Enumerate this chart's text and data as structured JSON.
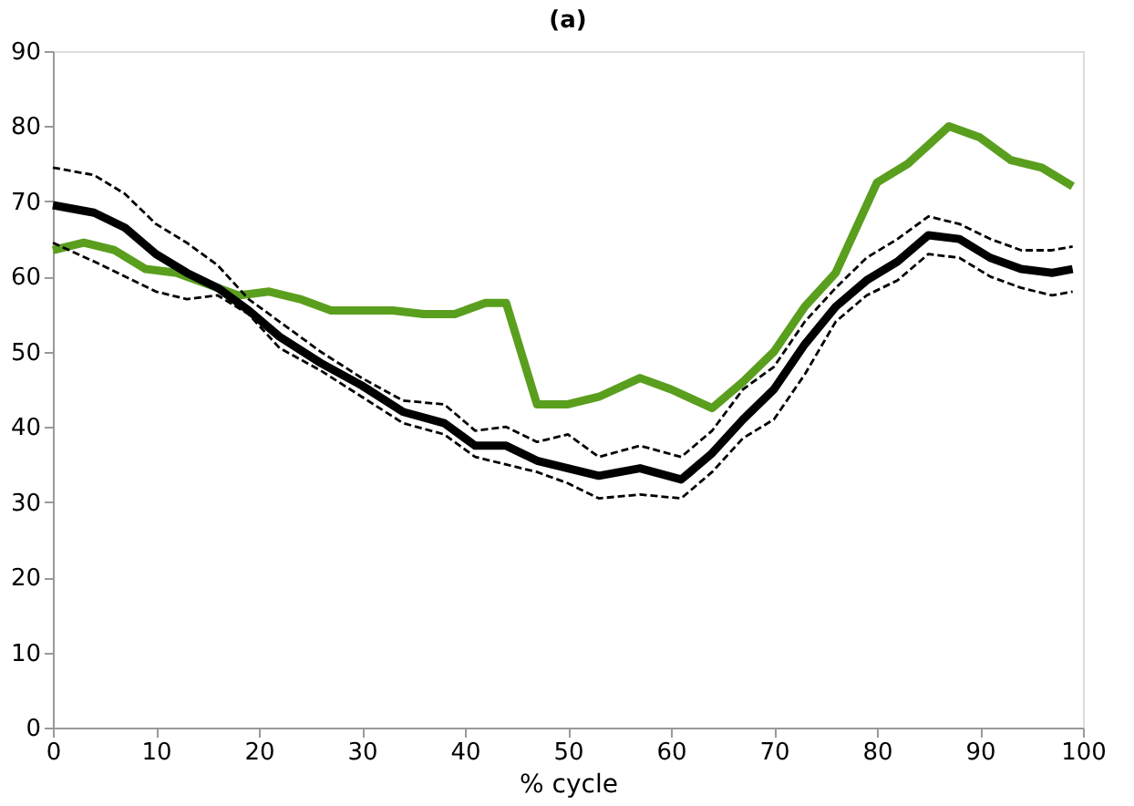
{
  "chart_data": {
    "type": "line",
    "title": "(a)",
    "xlabel": "% cycle",
    "xlim": [
      0,
      100
    ],
    "xticks": [
      0,
      10,
      20,
      30,
      40,
      50,
      60,
      70,
      80,
      90,
      100
    ],
    "ylim": [
      0,
      90
    ],
    "yticks": [
      0,
      10,
      20,
      30,
      40,
      50,
      60,
      70,
      80,
      90
    ],
    "grid": false,
    "series": [
      {
        "color": "#5a9e1e",
        "line_style": "solid",
        "x": [
          0,
          3,
          6,
          9,
          12,
          15,
          18,
          21,
          24,
          27,
          30,
          33,
          36,
          39,
          42,
          44,
          47,
          50,
          53,
          57,
          60,
          64,
          67,
          70,
          73,
          76,
          80,
          83,
          87,
          90,
          93,
          96,
          99
        ],
        "values": [
          63.5,
          64.5,
          63.5,
          61,
          60.5,
          59,
          57.5,
          58,
          57,
          55.5,
          55.5,
          55.5,
          55,
          55,
          56.5,
          56.5,
          43,
          43,
          44,
          46.5,
          45,
          42.5,
          46,
          50,
          56,
          60.5,
          72.5,
          75,
          80,
          78.5,
          75.5,
          74.5,
          72
        ]
      },
      {
        "color": "#000000",
        "line_style": "dashed",
        "x": [
          0,
          4,
          7,
          10,
          13,
          16,
          19,
          22,
          26,
          30,
          34,
          38,
          41,
          44,
          47,
          50,
          53,
          57,
          61,
          64,
          67,
          70,
          73,
          76,
          79,
          82,
          85,
          88,
          91,
          94,
          97,
          99
        ],
        "values": [
          74.5,
          73.5,
          71,
          67,
          64.5,
          61.5,
          57,
          54,
          50,
          46.5,
          43.5,
          43,
          39.5,
          40,
          38,
          39,
          36,
          37.5,
          36,
          39.5,
          45,
          48,
          54,
          58.5,
          62.5,
          65,
          68,
          67,
          65,
          63.5,
          63.5,
          64
        ]
      },
      {
        "color": "#000000",
        "line_style": "dashed",
        "x": [
          0,
          4,
          7,
          10,
          13,
          16,
          19,
          22,
          26,
          30,
          34,
          38,
          41,
          44,
          47,
          50,
          53,
          57,
          61,
          64,
          67,
          70,
          73,
          76,
          79,
          82,
          85,
          88,
          91,
          94,
          97,
          99
        ],
        "values": [
          64.5,
          62,
          60,
          58,
          57,
          57.5,
          55,
          50.5,
          47.5,
          44,
          40.5,
          39,
          36,
          35,
          34,
          32.5,
          30.5,
          31,
          30.5,
          34,
          38.5,
          41,
          47,
          54,
          57.5,
          59.5,
          63,
          62.5,
          60,
          58.5,
          57.5,
          58
        ]
      },
      {
        "color": "#000000",
        "line_style": "solid",
        "x": [
          0,
          4,
          7,
          10,
          13,
          16,
          19,
          22,
          26,
          30,
          34,
          38,
          41,
          44,
          47,
          50,
          53,
          57,
          61,
          64,
          67,
          70,
          73,
          76,
          79,
          82,
          85,
          88,
          91,
          94,
          97,
          99
        ],
        "values": [
          69.5,
          68.5,
          66.5,
          63,
          60.5,
          58.5,
          55.5,
          52,
          48.5,
          45.5,
          42,
          40.5,
          37.5,
          37.5,
          35.5,
          34.5,
          33.5,
          34.5,
          33,
          36.5,
          41,
          45,
          51,
          56,
          59.5,
          62,
          65.5,
          65,
          62.5,
          61,
          60.5,
          61
        ]
      }
    ]
  }
}
